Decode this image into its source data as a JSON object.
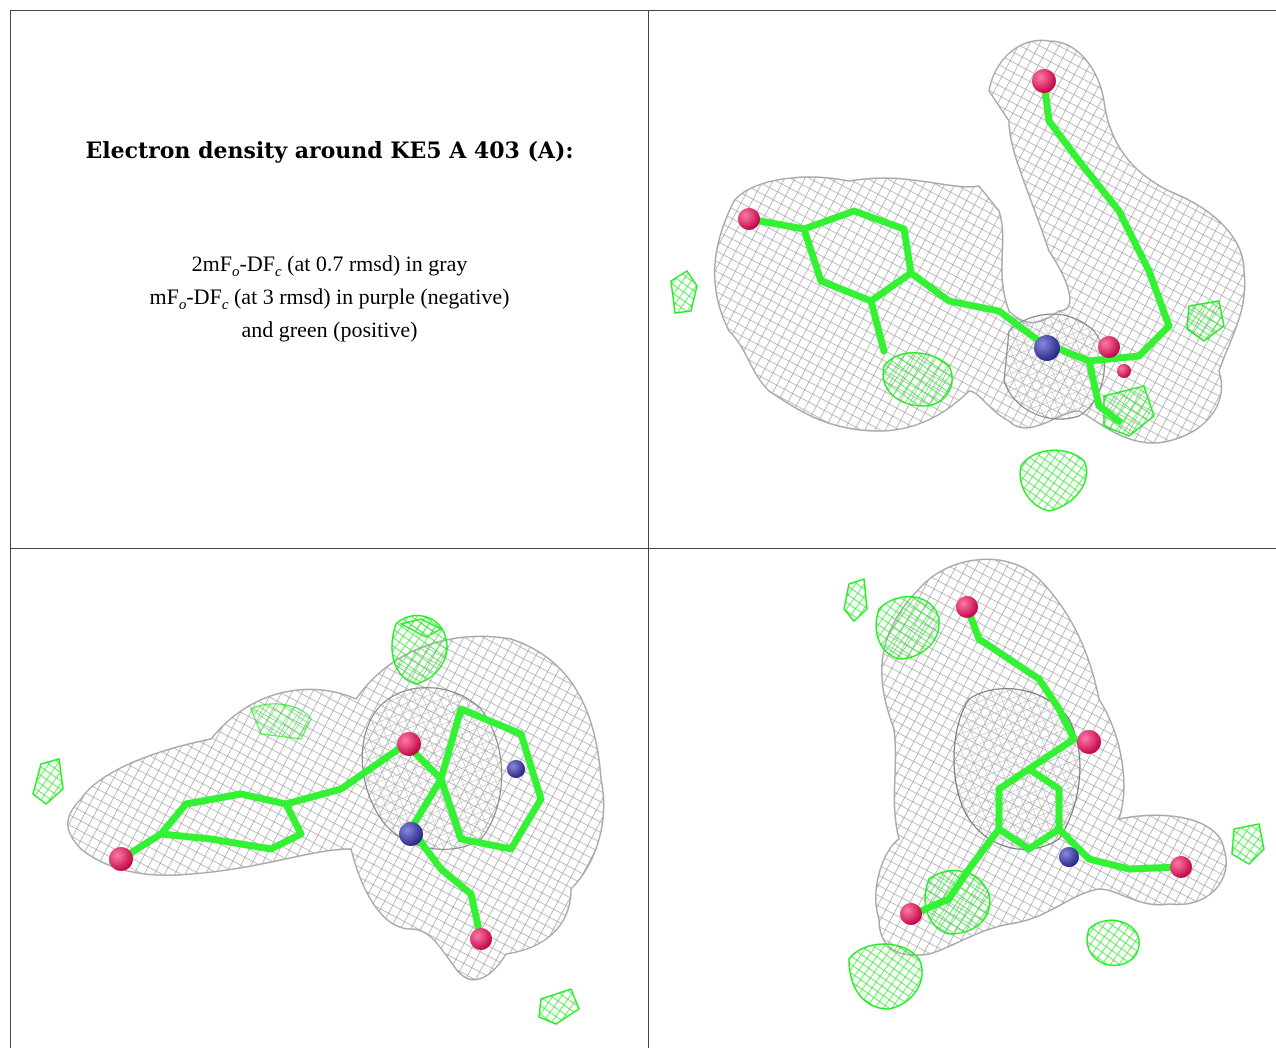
{
  "title": "Electron density around KE5 A 403 (A):",
  "legend": {
    "line1": {
      "a": "2mF",
      "a_sub": "o",
      "b": "-DF",
      "b_sub": "c",
      "rest": " (at 0.7 rmsd) in gray"
    },
    "line2": {
      "a": "mF",
      "a_sub": "o",
      "b": "-DF",
      "b_sub": "c",
      "rest": " (at 3 rmsd) in purple (negative)"
    },
    "line3": "and green (positive)"
  },
  "colors": {
    "mesh_gray": "#9a9a9a",
    "positive_green": "#22ee22",
    "bond_green": "#33f233",
    "oxygen": "#e0105a",
    "nitrogen": "#3a3aa8"
  },
  "panels": [
    {
      "view": "view-1"
    },
    {
      "view": "view-2"
    },
    {
      "view": "view-3"
    }
  ]
}
